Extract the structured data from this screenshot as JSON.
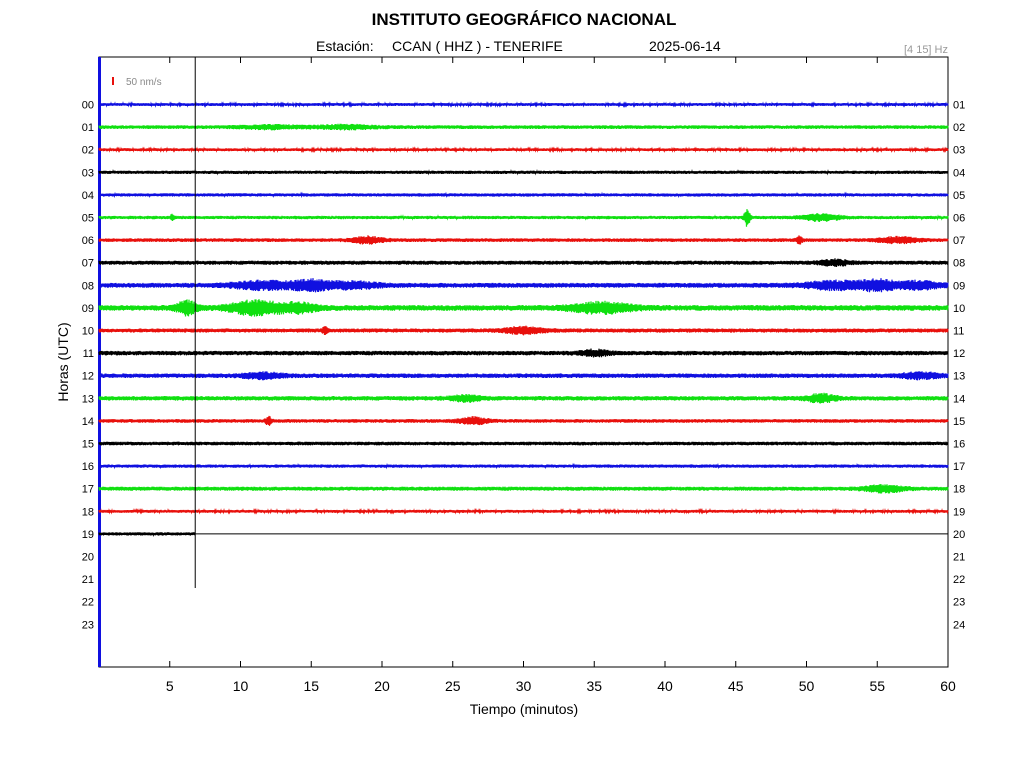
{
  "header": {
    "title": "INSTITUTO GEOGRÁFICO NACIONAL",
    "subtitle_station_label": "Estación:",
    "subtitle_station": "CCAN ( HHZ ) - TENERIFE",
    "subtitle_date": "2025-06-14",
    "filter_band": "[4 15] Hz"
  },
  "scale": {
    "label": "50 nm/s",
    "color": "#e8100c"
  },
  "chart_data": {
    "type": "line",
    "xlabel": "Tiempo (minutos)",
    "ylabel": "Horas (UTC)",
    "xlim": [
      0,
      60
    ],
    "x_ticks": [
      "5",
      "10",
      "15",
      "20",
      "25",
      "30",
      "35",
      "40",
      "45",
      "50",
      "55",
      "60"
    ],
    "left_hour_labels": [
      "00",
      "01",
      "02",
      "03",
      "04",
      "05",
      "06",
      "07",
      "08",
      "09",
      "10",
      "11",
      "12",
      "13",
      "14",
      "15",
      "16",
      "17",
      "18",
      "19",
      "20",
      "21",
      "22",
      "23"
    ],
    "right_hour_labels": [
      "01",
      "02",
      "03",
      "04",
      "05",
      "06",
      "07",
      "08",
      "09",
      "10",
      "11",
      "12",
      "13",
      "14",
      "15",
      "16",
      "17",
      "18",
      "19",
      "20",
      "21",
      "22",
      "23",
      "24"
    ],
    "trace_colors": [
      "#1010e0",
      "#10e010",
      "#e8100c",
      "#000000"
    ],
    "current_time_minutes": 6.8,
    "current_hour": 19,
    "series": [
      {
        "hour": "00",
        "color": "#1010e0",
        "noise": 1.4,
        "events": []
      },
      {
        "hour": "01",
        "color": "#10e010",
        "noise": 1.8,
        "events": [
          {
            "t": 12,
            "amp": 1.5,
            "dur": 3
          },
          {
            "t": 17.5,
            "amp": 1.6,
            "dur": 3
          }
        ]
      },
      {
        "hour": "02",
        "color": "#e8100c",
        "noise": 1.4,
        "events": []
      },
      {
        "hour": "03",
        "color": "#000000",
        "noise": 1.6,
        "events": []
      },
      {
        "hour": "04",
        "color": "#1010e0",
        "noise": 1.6,
        "events": []
      },
      {
        "hour": "05",
        "color": "#10e010",
        "noise": 1.6,
        "events": [
          {
            "t": 5.2,
            "amp": 3,
            "dur": 0.2
          },
          {
            "t": 45.8,
            "amp": 8,
            "dur": 0.3
          },
          {
            "t": 51,
            "amp": 3,
            "dur": 2
          }
        ]
      },
      {
        "hour": "06",
        "color": "#e8100c",
        "noise": 1.8,
        "events": [
          {
            "t": 19,
            "amp": 3,
            "dur": 1.5
          },
          {
            "t": 49.5,
            "amp": 3,
            "dur": 0.3
          },
          {
            "t": 56.5,
            "amp": 2.5,
            "dur": 2
          }
        ]
      },
      {
        "hour": "07",
        "color": "#000000",
        "noise": 2.0,
        "events": [
          {
            "t": 52,
            "amp": 2.5,
            "dur": 1.5
          }
        ]
      },
      {
        "hour": "08",
        "color": "#1010e0",
        "noise": 2.4,
        "events": [
          {
            "t": 11.5,
            "amp": 3.5,
            "dur": 3
          },
          {
            "t": 15,
            "amp": 4.5,
            "dur": 2
          },
          {
            "t": 18,
            "amp": 3,
            "dur": 2.5
          },
          {
            "t": 52,
            "amp": 3.5,
            "dur": 3
          },
          {
            "t": 55,
            "amp": 4.5,
            "dur": 2
          },
          {
            "t": 58,
            "amp": 3.5,
            "dur": 2
          }
        ]
      },
      {
        "hour": "09",
        "color": "#10e010",
        "noise": 2.8,
        "events": [
          {
            "t": 6.2,
            "amp": 6,
            "dur": 1
          },
          {
            "t": 11,
            "amp": 6,
            "dur": 2.5
          },
          {
            "t": 14,
            "amp": 4,
            "dur": 2
          },
          {
            "t": 35.5,
            "amp": 4.5,
            "dur": 3
          }
        ]
      },
      {
        "hour": "10",
        "color": "#e8100c",
        "noise": 2.0,
        "events": [
          {
            "t": 16,
            "amp": 3,
            "dur": 0.3
          },
          {
            "t": 30,
            "amp": 3,
            "dur": 2
          }
        ]
      },
      {
        "hour": "11",
        "color": "#000000",
        "noise": 2.2,
        "events": [
          {
            "t": 35,
            "amp": 2.5,
            "dur": 1.5
          }
        ]
      },
      {
        "hour": "12",
        "color": "#1010e0",
        "noise": 2.2,
        "events": [
          {
            "t": 11.5,
            "amp": 2.5,
            "dur": 2
          },
          {
            "t": 58,
            "amp": 2.5,
            "dur": 2
          }
        ]
      },
      {
        "hour": "13",
        "color": "#10e010",
        "noise": 2.2,
        "events": [
          {
            "t": 26,
            "amp": 2.5,
            "dur": 1.5
          },
          {
            "t": 51,
            "amp": 3.5,
            "dur": 1.5
          }
        ]
      },
      {
        "hour": "14",
        "color": "#e8100c",
        "noise": 1.8,
        "events": [
          {
            "t": 12,
            "amp": 4,
            "dur": 0.3
          },
          {
            "t": 26.5,
            "amp": 3,
            "dur": 1.5
          }
        ]
      },
      {
        "hour": "15",
        "color": "#000000",
        "noise": 1.8,
        "events": []
      },
      {
        "hour": "16",
        "color": "#1010e0",
        "noise": 1.6,
        "events": []
      },
      {
        "hour": "17",
        "color": "#10e010",
        "noise": 2.0,
        "events": [
          {
            "t": 55.5,
            "amp": 3,
            "dur": 2
          }
        ]
      },
      {
        "hour": "18",
        "color": "#e8100c",
        "noise": 1.4,
        "events": []
      },
      {
        "hour": "19",
        "color": "#000000",
        "noise": 1.6,
        "events": [],
        "end_minutes": 6.8
      }
    ]
  }
}
